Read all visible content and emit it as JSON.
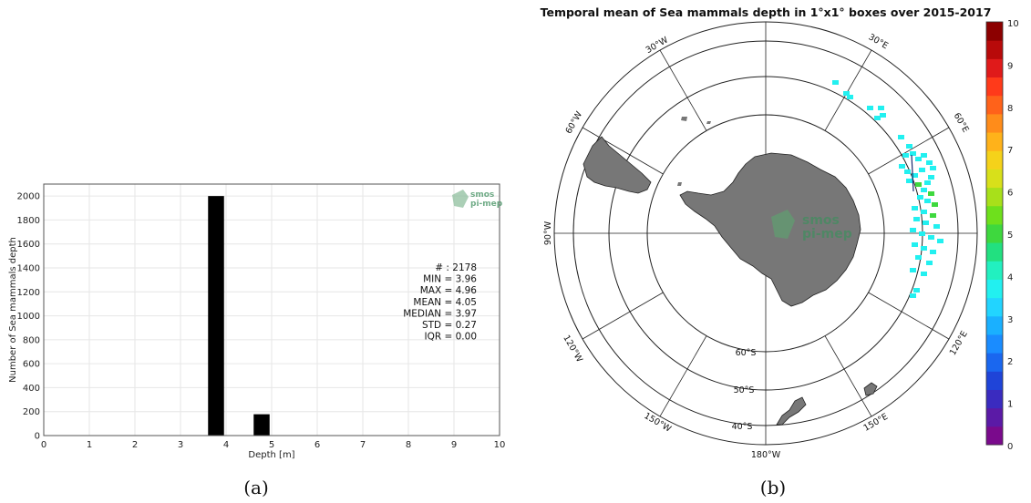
{
  "captions": {
    "a": "(a)",
    "b": "(b)"
  },
  "watermark": {
    "line1": "smos",
    "line2": "pi-mep",
    "color": "#3f8f5e"
  },
  "chart_data": [
    {
      "type": "bar",
      "title": "",
      "xlabel": "Depth [m]",
      "ylabel": "Number of Sea mammals depth",
      "xlim": [
        0,
        10
      ],
      "ylim": [
        0,
        2100
      ],
      "xticks": [
        0,
        1,
        2,
        3,
        4,
        5,
        6,
        7,
        8,
        9,
        10
      ],
      "yticks": [
        0,
        200,
        400,
        600,
        800,
        1000,
        1200,
        1400,
        1600,
        1800,
        2000
      ],
      "grid": true,
      "bin_width": 0.35,
      "bars": [
        {
          "x": 3.78,
          "value": 2000
        },
        {
          "x": 4.78,
          "value": 178
        }
      ],
      "stats": [
        "# : 2178",
        "MIN = 3.96",
        "MAX =  4.96",
        "MEAN = 4.05",
        "MEDIAN = 3.97",
        "STD = 0.27",
        "IQR = 0.00"
      ]
    },
    {
      "type": "heatmap",
      "title": "Temporal mean of Sea mammals depth in 1°x1° boxes over 2015-2017",
      "projection": "south polar stereographic",
      "latitude_circles": [
        "60°S",
        "50°S",
        "40°S"
      ],
      "longitude_labels": [
        {
          "label": "30°W",
          "lon": -30
        },
        {
          "label": "30°E",
          "lon": 30
        },
        {
          "label": "60°W",
          "lon": -60
        },
        {
          "label": "60°E",
          "lon": 60
        },
        {
          "label": "90°W",
          "lon": -90
        },
        {
          "label": "120°W",
          "lon": -120
        },
        {
          "label": "120°E",
          "lon": 120
        },
        {
          "label": "150°W",
          "lon": -150
        },
        {
          "label": "150°E",
          "lon": 150
        },
        {
          "label": "180°W",
          "lon": 180
        }
      ],
      "land_color": "#777777",
      "colorbar": {
        "min": 0,
        "max": 10,
        "ticks": [
          "0",
          "1",
          "2",
          "3",
          "4",
          "5",
          "6",
          "7",
          "8",
          "9",
          "10"
        ],
        "colors": [
          "#7a0a8c",
          "#5b1aa6",
          "#3a2bbf",
          "#1f44d8",
          "#1a67ef",
          "#1a8cff",
          "#1ab0ff",
          "#22d4ff",
          "#22f0f0",
          "#22f0c0",
          "#22e080",
          "#3ed83e",
          "#6ee01c",
          "#a8e01a",
          "#d8e01a",
          "#f5d21a",
          "#ffb21a",
          "#ff8c1a",
          "#ff621a",
          "#ff3a1a",
          "#e01a1a",
          "#b80a0a",
          "#8c0000"
        ]
      },
      "data_color": "#22f0f0",
      "data_color_alt": "#3ed83e"
    }
  ]
}
